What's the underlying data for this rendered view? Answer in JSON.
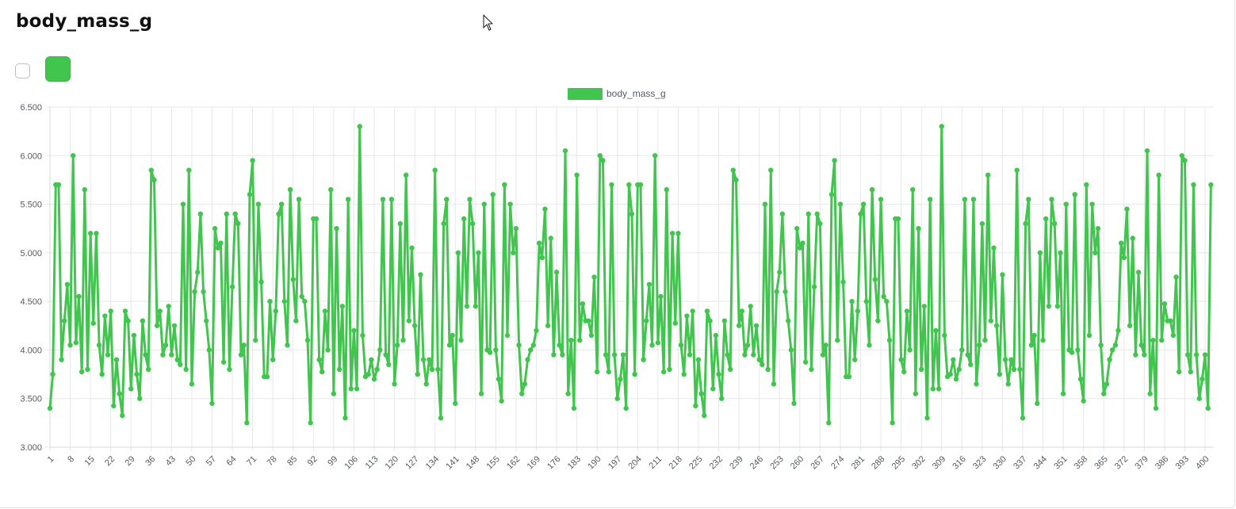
{
  "page": {
    "title": "body_mass_g"
  },
  "controls": {
    "checkbox_checked": false,
    "swatch_color": "#42c54e"
  },
  "cursor_icon": "arrow-cursor-icon",
  "chart_data": {
    "type": "line",
    "title": "",
    "xlabel": "",
    "ylabel": "",
    "ylim": [
      3000,
      6500
    ],
    "y_ticks": [
      3000,
      3500,
      4000,
      4500,
      5000,
      5500,
      6000,
      6500
    ],
    "y_tick_labels": [
      "3.000",
      "3.500",
      "4.000",
      "4.500",
      "5.000",
      "5.500",
      "6.000",
      "6.500"
    ],
    "x_tick_labels": [
      "1",
      "8",
      "15",
      "22",
      "29",
      "36",
      "43",
      "50",
      "57",
      "64",
      "71",
      "78",
      "85",
      "92",
      "99",
      "106",
      "113",
      "120",
      "127",
      "134",
      "141",
      "148",
      "155",
      "162",
      "169",
      "176",
      "183",
      "190",
      "197",
      "204",
      "211",
      "218",
      "225",
      "232",
      "239",
      "246",
      "253",
      "260",
      "267",
      "274",
      "281",
      "288",
      "295",
      "302",
      "309",
      "316",
      "323",
      "330",
      "337",
      "344",
      "351",
      "358",
      "365",
      "372",
      "379",
      "386",
      "393",
      "400"
    ],
    "x_start": 1,
    "x_end": 403,
    "legend": {
      "label": "body_mass_g",
      "color": "#42c54e",
      "position": "top-center"
    },
    "grid": true,
    "series": [
      {
        "name": "body_mass_g",
        "color": "#42c54e",
        "values": [
          3400,
          3750,
          5700,
          5700,
          3900,
          4300,
          4675,
          4050,
          6000,
          4075,
          4550,
          3775,
          5650,
          3800,
          5200,
          4275,
          5200,
          4050,
          3750,
          4350,
          3950,
          4400,
          3425,
          3900,
          3550,
          3325,
          4400,
          4300,
          3600,
          4150,
          3750,
          3500,
          4300,
          3950,
          3800,
          5850,
          5750,
          4250,
          4400,
          3950,
          4050,
          4450,
          3950,
          4250,
          3900,
          3850,
          5500,
          3800,
          5850,
          3650,
          4600,
          4800,
          5400,
          4600,
          4300,
          4000,
          3450,
          5250,
          5050,
          5100,
          3875,
          5400,
          3800,
          4650,
          5400,
          5300,
          3950,
          4050,
          3250,
          5600,
          5950,
          4100,
          5500,
          4700,
          3725,
          3725,
          4500,
          3900,
          4400,
          5400,
          5500,
          4500,
          4050,
          5650,
          4725,
          4300,
          5550,
          4550,
          4500,
          4100,
          3250,
          5350,
          5350,
          3900,
          3775,
          4400,
          4000,
          5650,
          3550,
          5250,
          3800,
          4450,
          3300,
          5550,
          3600,
          4200,
          3600,
          6300,
          4150,
          3725,
          3750,
          3900,
          3700,
          3800,
          4000,
          5550,
          3950,
          3850,
          5550,
          3650,
          4050,
          5300,
          4100,
          5800,
          4300,
          5050,
          4250,
          3750,
          4775,
          3900,
          3650,
          3900,
          3800,
          5850,
          3800,
          3300,
          5300,
          5550,
          4050,
          4150,
          3450,
          5000,
          4100,
          5350,
          4450,
          5550,
          5300,
          4450,
          5000,
          3550,
          5500,
          4000,
          3975,
          5600,
          4000,
          3700,
          3475,
          5700,
          4150,
          5500,
          5000,
          5250,
          4050,
          3550,
          3650,
          3900,
          4000,
          4050,
          4200,
          5100,
          4950,
          5450,
          4250,
          5150,
          3950,
          4800,
          4050,
          3950,
          6050,
          3550,
          4100,
          3400,
          5800,
          4100,
          4475,
          4300,
          4300,
          4150,
          4750,
          3775,
          6000,
          5950,
          3950,
          3775,
          5700,
          3950,
          3500,
          3700,
          3950,
          3400,
          5700,
          5400,
          3750,
          5700,
          5700,
          3900,
          4300,
          4675,
          4050,
          6000,
          4075,
          4550,
          3775,
          5650,
          3800,
          5200,
          4275,
          5200,
          4050,
          3750,
          4350,
          3950,
          4400,
          3425,
          3900,
          3550,
          3325,
          4400,
          4300,
          3600,
          4150,
          3750,
          3500,
          4300,
          3950,
          3800,
          5850,
          5750,
          4250,
          4400,
          3950,
          4050,
          4450,
          3950,
          4250,
          3900,
          3850,
          5500,
          3800,
          5850,
          3650,
          4600,
          4800,
          5400,
          4600,
          4300,
          4000,
          3450,
          5250,
          5050,
          5100,
          3875,
          5400,
          3800,
          4650,
          5400,
          5300,
          3950,
          4050,
          3250,
          5600,
          5950,
          4100,
          5500,
          4700,
          3725,
          3725,
          4500,
          3900,
          4400,
          5400,
          5500,
          4500,
          4050,
          5650,
          4725,
          4300,
          5550,
          4550,
          4500,
          4100,
          3250,
          5350,
          5350,
          3900,
          3775,
          4400,
          4000,
          5650,
          3550,
          5250,
          3800,
          4450,
          3300,
          5550,
          3600,
          4200,
          3600,
          6300,
          4150,
          3725,
          3750,
          3900,
          3700,
          3800,
          4000,
          5550,
          3950,
          3850,
          5550,
          3650,
          4050,
          5300,
          4100,
          5800,
          4300,
          5050,
          4250,
          3750,
          4775,
          3900,
          3650,
          3900,
          3800,
          5850,
          3800,
          3300,
          5300,
          5550,
          4050,
          4150,
          3450,
          5000,
          4100,
          5350,
          4450,
          5550,
          5300,
          4450,
          5000,
          3550,
          5500,
          4000,
          3975,
          5600,
          4000,
          3700,
          3475,
          5700,
          4150,
          5500,
          5000,
          5250,
          4050,
          3550,
          3650,
          3900,
          4000,
          4050,
          4200,
          5100,
          4950,
          5450,
          4250,
          5150,
          3950,
          4800,
          4050,
          3950,
          6050,
          3550,
          4100,
          3400,
          5800,
          4100,
          4475,
          4300,
          4300,
          4150,
          4750,
          3775,
          6000,
          5950,
          3950,
          3775,
          5700,
          3950,
          3500,
          3700,
          3950,
          3400,
          5700
        ]
      }
    ]
  }
}
